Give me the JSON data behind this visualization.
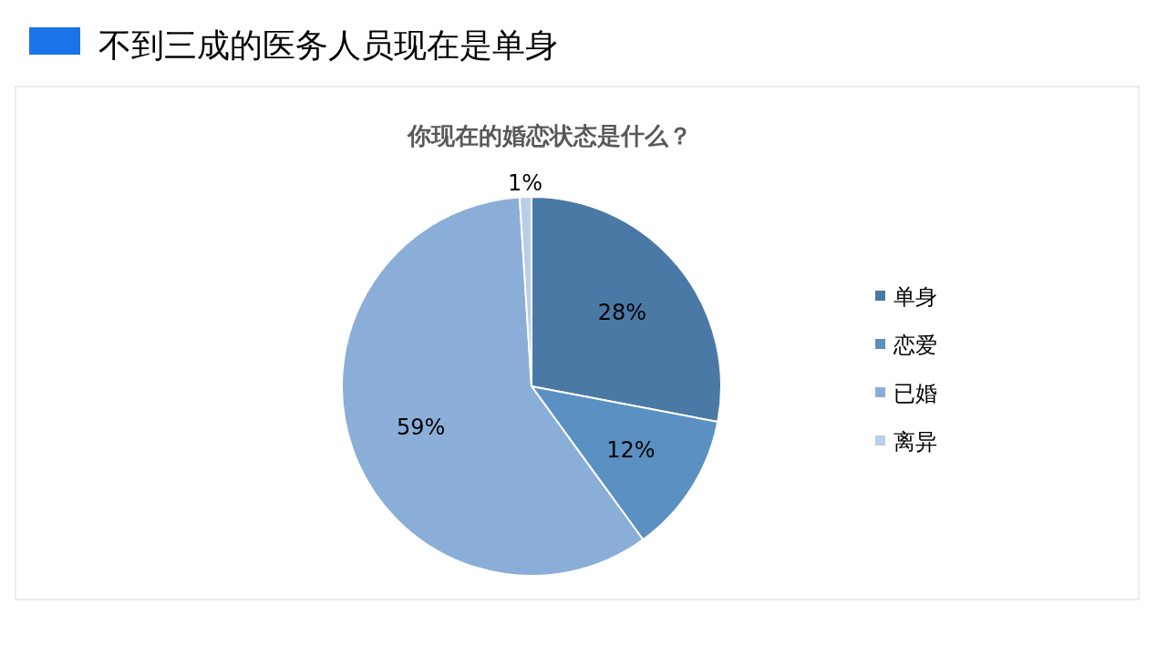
{
  "chart_data": {
    "type": "pie",
    "title": "不到三成的医务人员现在是单身",
    "subtitle": "你现在的婚恋状态是什么？",
    "categories": [
      "单身",
      "恋爱",
      "已婚",
      "离异"
    ],
    "values": [
      28,
      12,
      59,
      1
    ],
    "colors": [
      "#4a79a5",
      "#5a90c2",
      "#8aaed7",
      "#b9cde6"
    ],
    "value_labels": [
      "28%",
      "12%",
      "59%",
      "1%"
    ],
    "legend": "right"
  }
}
